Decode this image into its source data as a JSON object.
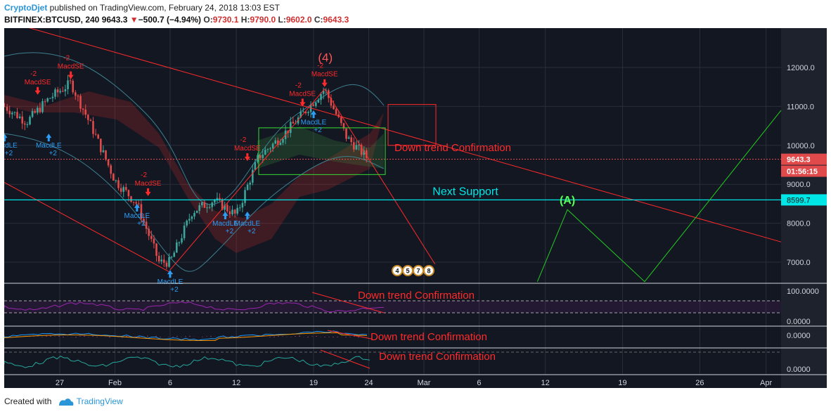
{
  "header": {
    "author": "CryptoDjet",
    "published_text": " published on TradingView.com, February 24, 2018 13:03 EST"
  },
  "symbol_bar": {
    "symbol": "BITFINEX:BTCUSD, 240",
    "price": "9643.3",
    "change": "−500.7 (−4.94%)",
    "o_label": "O:",
    "o": "9730.1",
    "h_label": "H:",
    "h": "9790.0",
    "l_label": "L:",
    "l": "9602.0",
    "c_label": "C:",
    "c": "9643.3"
  },
  "footer": {
    "created_with": "Created with",
    "brand": "TradingView"
  },
  "chart_data": {
    "type": "line",
    "series": [
      {
        "values_x": [
          "2018-01-22",
          "2018-01-24",
          "2018-01-26",
          "2018-01-28",
          "2018-01-30",
          "2018-02-01",
          "2018-02-03",
          "2018-02-05",
          "2018-02-06",
          "2018-02-08",
          "2018-02-10",
          "2018-02-12",
          "2018-02-14",
          "2018-02-16",
          "2018-02-18",
          "2018-02-20",
          "2018-02-22",
          "2018-02-24"
        ],
        "values": [
          11000,
          10600,
          11200,
          11600,
          10400,
          9100,
          8500,
          7000,
          7000,
          8300,
          8600,
          8200,
          9700,
          10200,
          10800,
          11450,
          10200,
          9643.3
        ]
      }
    ],
    "y_ticks": [
      "12000.0",
      "11000.0",
      "10000.0",
      "9000.0",
      "8000.0",
      "7000.0"
    ],
    "ylim": [
      6500,
      12800
    ],
    "x_ticks": [
      {
        "label": "27",
        "date": "2018-01-27"
      },
      {
        "label": "Feb",
        "date": "2018-02-01"
      },
      {
        "label": "6",
        "date": "2018-02-06"
      },
      {
        "label": "12",
        "date": "2018-02-12"
      },
      {
        "label": "19",
        "date": "2018-02-19"
      },
      {
        "label": "24",
        "date": "2018-02-24"
      },
      {
        "label": "Mar",
        "date": "2018-03-01"
      },
      {
        "label": "6",
        "date": "2018-03-06"
      },
      {
        "label": "12",
        "date": "2018-03-12"
      },
      {
        "label": "19",
        "date": "2018-03-19"
      },
      {
        "label": "26",
        "date": "2018-03-26"
      },
      {
        "label": "Apr",
        "date": "2018-04-01"
      }
    ],
    "price_label": "9643.3",
    "countdown_label": "01:56:15",
    "support_label": "8599.7",
    "support_value": 8599.7,
    "annotations": {
      "wave4": "(4)",
      "waveA": "(A)",
      "next_support": "Next Support",
      "down_trend": "Down trend Confirmation"
    },
    "signals": [
      {
        "text": "MacdLE",
        "sub": "+2",
        "type": "long",
        "date": "2018-01-22",
        "price": 10300
      },
      {
        "text": "MacdSE",
        "sub": "-2",
        "type": "short",
        "date": "2018-01-25",
        "price": 11300
      },
      {
        "text": "MacdLE",
        "sub": "+2",
        "type": "long",
        "date": "2018-01-26",
        "price": 10300
      },
      {
        "text": "MacdSE",
        "sub": "-2",
        "type": "short",
        "date": "2018-01-28",
        "price": 11700
      },
      {
        "text": "MacdLE",
        "sub": "+2",
        "type": "long",
        "date": "2018-02-03",
        "price": 8500
      },
      {
        "text": "MacdSE",
        "sub": "-2",
        "type": "short",
        "date": "2018-02-04",
        "price": 8700
      },
      {
        "text": "MacdLE",
        "sub": "+2",
        "type": "long",
        "date": "2018-02-06",
        "price": 6800
      },
      {
        "text": "MacdLE",
        "sub": "+2",
        "type": "long",
        "date": "2018-02-11",
        "price": 8300
      },
      {
        "text": "MacdLE",
        "sub": "+2",
        "type": "long",
        "date": "2018-02-13",
        "price": 8300
      },
      {
        "text": "MacdSE",
        "sub": "-2",
        "type": "short",
        "date": "2018-02-13",
        "price": 9600
      },
      {
        "text": "MacdSE",
        "sub": "-2",
        "type": "short",
        "date": "2018-02-18",
        "price": 11000
      },
      {
        "text": "MacdLE",
        "sub": "+2",
        "type": "long",
        "date": "2018-02-19",
        "price": 10900
      },
      {
        "text": "MacdSE",
        "sub": "-2",
        "type": "short",
        "date": "2018-02-20",
        "price": 11500
      }
    ],
    "events": [
      "4",
      "5",
      "7",
      "8"
    ],
    "indicators": [
      {
        "ticks": [
          "100.0000",
          "0.0000"
        ],
        "note": "Down trend Confirmation"
      },
      {
        "ticks": [
          "0.0000"
        ],
        "note": "Down trend Confirmation"
      },
      {
        "ticks": [
          "0.0000"
        ],
        "note": "Down trend Confirmation"
      }
    ],
    "colors": {
      "background": "#131722",
      "bull": "#3ba59a",
      "bear": "#e04a4a",
      "trend": "#ff2a2a",
      "support": "#00e6e6",
      "projection": "#22cc22",
      "rsi": "#9c27b0",
      "macd": "#2196f3",
      "signal": "#ff9800",
      "stoch": "#26a69a"
    }
  }
}
